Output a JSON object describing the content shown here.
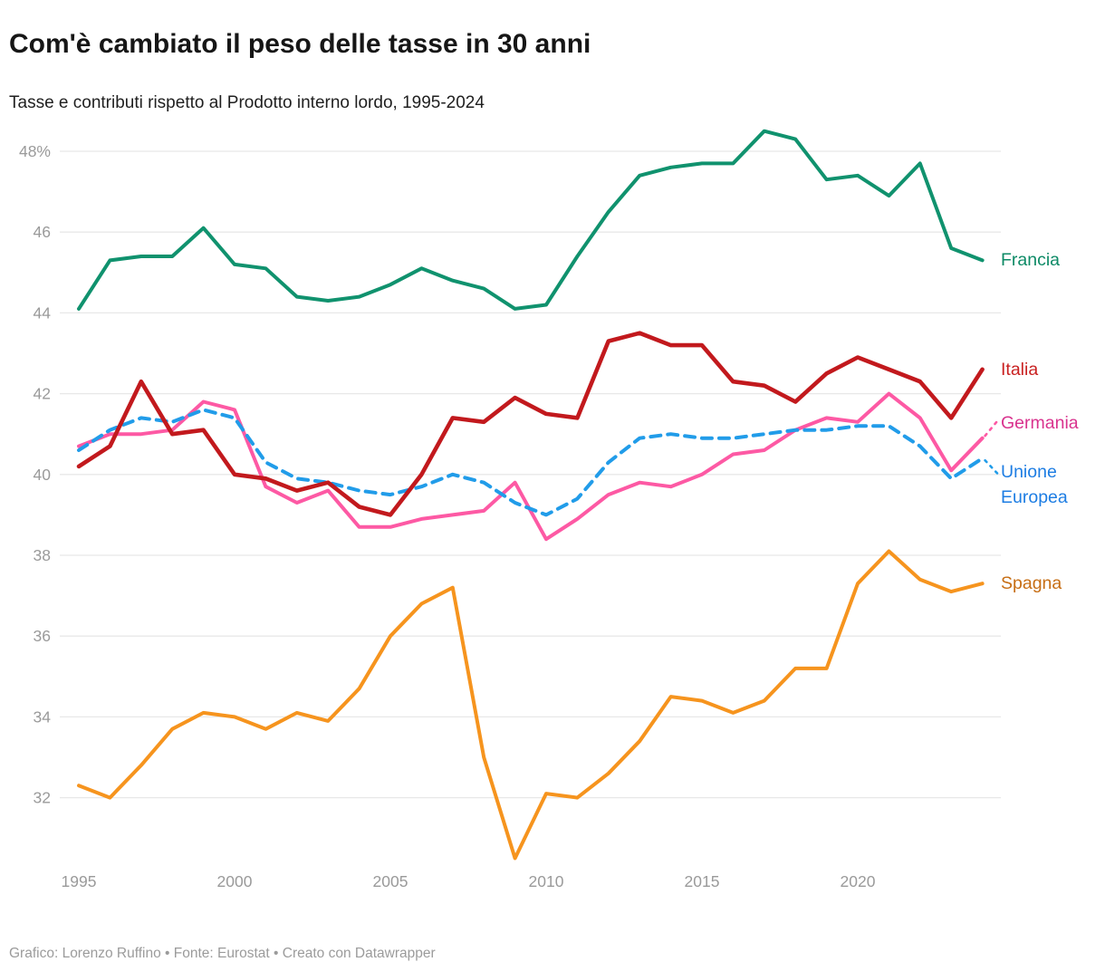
{
  "header": {
    "title": "Com'è cambiato il peso delle tasse in 30 anni",
    "subtitle": "Tasse e contributi rispetto al Prodotto interno lordo, 1995-2024"
  },
  "footer": {
    "credit": "Grafico: Lorenzo Ruffino • Fonte: Eurostat • Creato con Datawrapper"
  },
  "chart_data": {
    "type": "line",
    "title": "Com'è cambiato il peso delle tasse in 30 anni",
    "subtitle": "Tasse e contributi rispetto al Prodotto interno lordo, 1995-2024",
    "xlabel": "",
    "ylabel": "",
    "grid": "horizontal",
    "legend_position": "right-edge-labels",
    "xlim": [
      1995,
      2024
    ],
    "ylim": [
      30.2,
      48.9
    ],
    "x": [
      1995,
      1996,
      1997,
      1998,
      1999,
      2000,
      2001,
      2002,
      2003,
      2004,
      2005,
      2006,
      2007,
      2008,
      2009,
      2010,
      2011,
      2012,
      2013,
      2014,
      2015,
      2016,
      2017,
      2018,
      2019,
      2020,
      2021,
      2022,
      2023,
      2024
    ],
    "x_ticks": [
      1995,
      2000,
      2005,
      2010,
      2015,
      2020
    ],
    "y_ticks": [
      {
        "value": 48,
        "label": "48%"
      },
      {
        "value": 46,
        "label": "46"
      },
      {
        "value": 44,
        "label": "44"
      },
      {
        "value": 42,
        "label": "42"
      },
      {
        "value": 40,
        "label": "40"
      },
      {
        "value": 38,
        "label": "38"
      },
      {
        "value": 36,
        "label": "36"
      },
      {
        "value": 34,
        "label": "34"
      },
      {
        "value": 32,
        "label": "32"
      }
    ],
    "series": [
      {
        "name": "Francia",
        "color": "#10926e",
        "label_color": "#0d8a66",
        "line_style": "solid",
        "values": [
          44.1,
          45.3,
          45.4,
          45.4,
          46.1,
          45.2,
          45.1,
          44.4,
          44.3,
          44.4,
          44.7,
          45.1,
          44.8,
          44.6,
          44.1,
          44.2,
          45.4,
          46.5,
          47.4,
          47.6,
          47.7,
          47.7,
          48.5,
          48.3,
          47.3,
          47.4,
          46.9,
          47.7,
          45.6,
          45.3
        ]
      },
      {
        "name": "Spagna",
        "color": "#f6941e",
        "label_color": "#c76e14",
        "line_style": "solid",
        "values": [
          32.3,
          32.0,
          32.8,
          33.7,
          34.1,
          34.0,
          33.7,
          34.1,
          33.9,
          34.7,
          36.0,
          36.8,
          37.2,
          33.0,
          30.5,
          32.1,
          32.0,
          32.6,
          33.4,
          34.5,
          34.4,
          34.1,
          34.4,
          35.2,
          35.2,
          37.3,
          38.1,
          37.4,
          37.1,
          37.3
        ]
      },
      {
        "name": "Germania",
        "color": "#fd59a4",
        "label_color": "#d9338e",
        "line_style": "solid",
        "values": [
          40.7,
          41.0,
          41.0,
          41.1,
          41.8,
          41.6,
          39.7,
          39.3,
          39.6,
          38.7,
          38.7,
          38.9,
          39.0,
          39.1,
          39.8,
          38.4,
          38.9,
          39.5,
          39.8,
          39.7,
          40.0,
          40.5,
          40.6,
          41.1,
          41.4,
          41.3,
          42.0,
          41.4,
          40.1,
          40.9
        ]
      },
      {
        "name": "Unione Europea",
        "color": "#219ce9",
        "label_color": "#1d7de3",
        "line_style": "dashed",
        "values": [
          40.6,
          41.1,
          41.4,
          41.3,
          41.6,
          41.4,
          40.3,
          39.9,
          39.8,
          39.6,
          39.5,
          39.7,
          40.0,
          39.8,
          39.3,
          39.0,
          39.4,
          40.3,
          40.9,
          41.0,
          40.9,
          40.9,
          41.0,
          41.1,
          41.1,
          41.2,
          41.2,
          40.7,
          39.9,
          40.4
        ]
      },
      {
        "name": "Italia",
        "color": "#c2191d",
        "label_color": "#c92121",
        "line_style": "solid",
        "values": [
          40.2,
          40.7,
          42.3,
          41.0,
          41.1,
          40.0,
          39.9,
          39.6,
          39.8,
          39.2,
          39.0,
          40.0,
          41.4,
          41.3,
          41.9,
          41.5,
          41.4,
          43.3,
          43.5,
          43.2,
          43.2,
          42.3,
          42.2,
          41.8,
          42.5,
          42.9,
          42.6,
          42.3,
          41.4,
          42.6
        ]
      }
    ]
  }
}
